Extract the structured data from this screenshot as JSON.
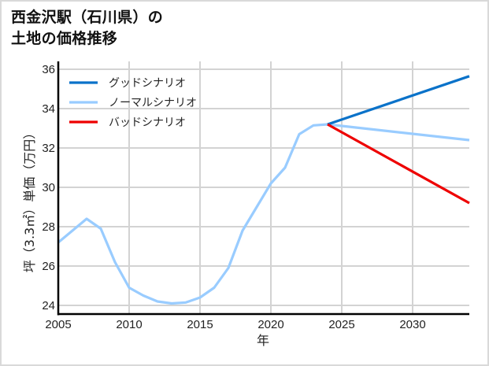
{
  "title": {
    "line1": "西金沢駅（石川県）の",
    "line2": "土地の価格推移"
  },
  "colors": {
    "good": "#0a72c9",
    "normal": "#99ccff",
    "bad": "#ee0000",
    "grid": "#d3d3d3",
    "axis": "#000000"
  },
  "chart_data": {
    "type": "line",
    "title": "西金沢駅（石川県）の土地の価格推移",
    "xlabel": "年",
    "ylabel": "坪（3.3㎡）単価（万円）",
    "xlim": [
      2005,
      2034
    ],
    "ylim": [
      23.56,
      36
    ],
    "xticks": [
      2005,
      2010,
      2015,
      2020,
      2025,
      2030
    ],
    "yticks": [
      24,
      26,
      28,
      30,
      32,
      34,
      36
    ],
    "grid": true,
    "legend_position": "upper left",
    "legend": [
      "グッドシナリオ",
      "ノーマルシナリオ",
      "バッドシナリオ"
    ],
    "series": [
      {
        "name": "ノーマルシナリオ",
        "color": "#99ccff",
        "x": [
          2005,
          2006,
          2007,
          2008,
          2009,
          2010,
          2011,
          2012,
          2013,
          2014,
          2015,
          2016,
          2017,
          2018,
          2019,
          2020,
          2021,
          2022,
          2023,
          2024,
          2034
        ],
        "values": [
          27.2,
          27.8,
          28.4,
          27.9,
          26.2,
          24.9,
          24.5,
          24.2,
          24.1,
          24.15,
          24.4,
          24.9,
          25.9,
          27.8,
          29.0,
          30.2,
          31.0,
          32.7,
          33.15,
          33.2,
          32.4
        ]
      },
      {
        "name": "グッドシナリオ",
        "color": "#0a72c9",
        "x": [
          2024,
          2034
        ],
        "values": [
          33.2,
          35.65
        ]
      },
      {
        "name": "バッドシナリオ",
        "color": "#ee0000",
        "x": [
          2024,
          2034
        ],
        "values": [
          33.2,
          29.2
        ]
      }
    ]
  }
}
